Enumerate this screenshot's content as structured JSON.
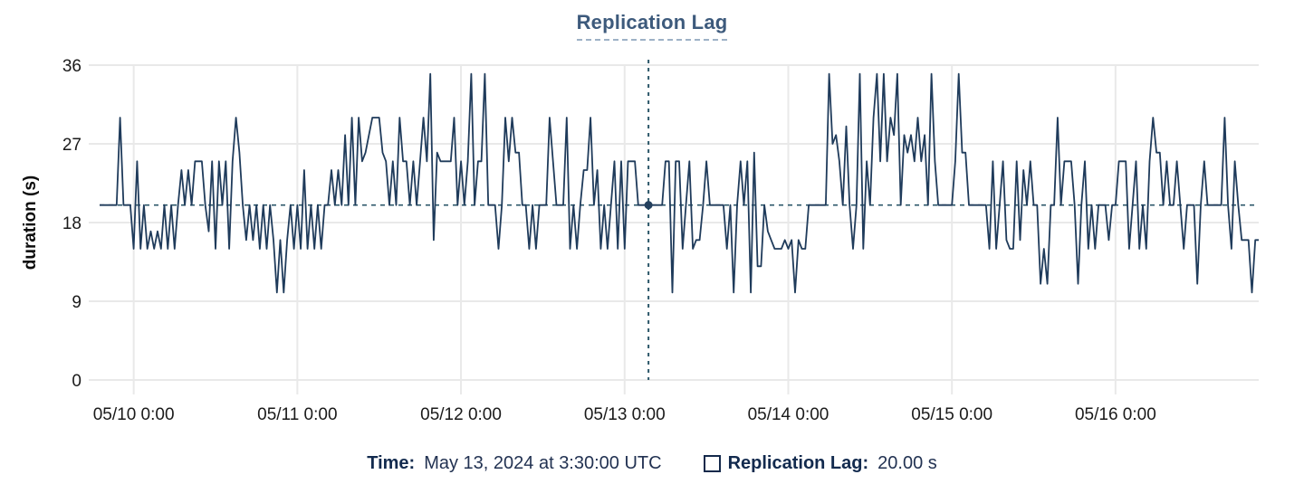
{
  "chart_data": {
    "type": "line",
    "title": "Replication Lag",
    "ylabel": "duration (s)",
    "ylim": [
      0,
      36
    ],
    "yticks": [
      0,
      9,
      18,
      27,
      36
    ],
    "x_range_hours": [
      0,
      170
    ],
    "xticks": [
      {
        "t": 5,
        "label": "05/10 0:00"
      },
      {
        "t": 29,
        "label": "05/11 0:00"
      },
      {
        "t": 53,
        "label": "05/12 0:00"
      },
      {
        "t": 77,
        "label": "05/13 0:00"
      },
      {
        "t": 101,
        "label": "05/14 0:00"
      },
      {
        "t": 125,
        "label": "05/15 0:00"
      },
      {
        "t": 149,
        "label": "05/16 0:00"
      }
    ],
    "grid": true,
    "legend_position": "bottom",
    "series": [
      {
        "name": "Replication Lag",
        "unit": "s",
        "interval_hours": 0.5,
        "values": [
          20,
          20,
          20,
          20,
          20,
          20,
          30,
          20,
          20,
          20,
          15,
          25,
          15,
          20,
          15,
          17,
          15,
          17,
          15,
          20,
          15,
          20,
          15,
          20,
          24,
          20,
          24,
          20,
          25,
          25,
          25,
          20,
          17,
          25,
          15,
          25,
          20,
          25,
          15,
          25,
          30,
          26,
          20,
          16,
          20,
          16,
          20,
          15,
          20,
          15,
          20,
          16,
          10,
          16,
          10,
          16,
          20,
          15,
          20,
          15,
          24,
          15,
          20,
          15,
          20,
          15,
          20,
          20,
          24,
          20,
          24,
          20,
          28,
          20,
          30,
          20,
          30,
          25,
          26,
          28,
          30,
          30,
          30,
          26,
          25,
          20,
          25,
          20,
          30,
          25,
          25,
          20,
          25,
          20,
          25,
          30,
          25,
          35,
          16,
          26,
          25,
          25,
          25,
          25,
          30,
          20,
          25,
          20,
          25,
          35,
          20,
          25,
          25,
          35,
          20,
          20,
          20,
          15,
          20,
          30,
          25,
          30,
          26,
          26,
          20,
          20,
          15,
          20,
          15,
          20,
          20,
          20,
          30,
          25,
          20,
          20,
          20,
          30,
          15,
          20,
          15,
          20,
          24,
          24,
          30,
          20,
          24,
          15,
          20,
          15,
          20,
          25,
          15,
          25,
          15,
          25,
          25,
          25,
          20,
          20,
          20,
          20,
          20,
          20,
          20,
          20,
          25,
          25,
          10,
          25,
          25,
          15,
          20,
          25,
          15,
          16,
          16,
          20,
          25,
          20,
          20,
          20,
          20,
          20,
          15,
          20,
          10,
          20,
          25,
          20,
          25,
          10,
          26,
          13,
          13,
          20,
          17,
          16,
          15,
          15,
          15,
          16,
          15,
          16,
          10,
          16,
          15,
          15,
          20,
          20,
          20,
          20,
          20,
          20,
          35,
          27,
          28,
          25,
          20,
          29,
          20,
          15,
          20,
          35,
          15,
          25,
          20,
          30,
          35,
          25,
          35,
          25,
          30,
          28,
          35,
          20,
          28,
          26,
          28,
          25,
          30,
          25,
          28,
          20,
          35,
          25,
          20,
          20,
          20,
          20,
          20,
          25,
          35,
          26,
          26,
          20,
          20,
          20,
          20,
          20,
          20,
          15,
          25,
          15,
          20,
          25,
          16,
          15,
          15,
          25,
          16,
          24,
          20,
          25,
          20,
          20,
          11,
          15,
          11,
          20,
          20,
          30,
          20,
          25,
          25,
          25,
          20,
          11,
          20,
          25,
          15,
          20,
          15,
          20,
          20,
          20,
          16,
          20,
          20,
          25,
          25,
          25,
          15,
          20,
          25,
          15,
          20,
          15,
          25,
          30,
          26,
          26,
          20,
          25,
          20,
          20,
          25,
          20,
          15,
          20,
          20,
          20,
          11,
          20,
          25,
          20,
          20,
          20,
          20,
          20,
          30,
          20,
          15,
          25,
          20,
          16,
          16,
          16,
          10,
          16,
          16
        ]
      }
    ],
    "hover": {
      "t_hours": 80.5,
      "value": 20,
      "time_label": "May 13, 2024 at 3:30:00 UTC",
      "value_label": "20.00 s"
    }
  },
  "tooltip": {
    "time_key": "Time:",
    "time_value": "May 13, 2024 at 3:30:00 UTC",
    "series_key": "Replication Lag:",
    "series_value": "20.00 s"
  },
  "colors": {
    "line": "#1f3b5b",
    "hover_dash": "#2c5769",
    "hover_dot": "#24405e",
    "grid": "#e9e9e9",
    "tick_text": "#1a1a1a",
    "title_text": "#3d5a7c"
  }
}
